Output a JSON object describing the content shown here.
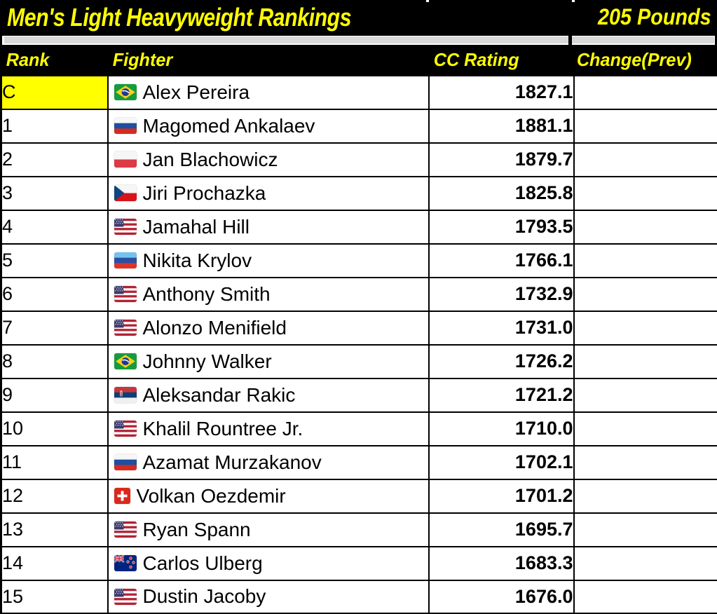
{
  "titlebar": {
    "title": "Men's Light Heavyweight Rankings",
    "weight_class": "205 Pounds"
  },
  "header": {
    "rank": "Rank",
    "fighter": "Fighter",
    "rating": "CC Rating",
    "change": "Change(Prev)"
  },
  "rows": [
    {
      "rank": "C",
      "highlight": true,
      "flag": "brazil",
      "fighter": "Alex Pereira",
      "rating": "1827.1",
      "change": ""
    },
    {
      "rank": "1",
      "highlight": false,
      "flag": "russia",
      "fighter": "Magomed Ankalaev",
      "rating": "1881.1",
      "change": ""
    },
    {
      "rank": "2",
      "highlight": false,
      "flag": "poland",
      "fighter": "Jan Blachowicz",
      "rating": "1879.7",
      "change": ""
    },
    {
      "rank": "3",
      "highlight": false,
      "flag": "czechia",
      "fighter": "Jiri Prochazka",
      "rating": "1825.8",
      "change": ""
    },
    {
      "rank": "4",
      "highlight": false,
      "flag": "usa",
      "fighter": "Jamahal Hill",
      "rating": "1793.5",
      "change": ""
    },
    {
      "rank": "5",
      "highlight": false,
      "flag": "luhansk",
      "fighter": "Nikita Krylov",
      "rating": "1766.1",
      "change": ""
    },
    {
      "rank": "6",
      "highlight": false,
      "flag": "usa",
      "fighter": "Anthony Smith",
      "rating": "1732.9",
      "change": ""
    },
    {
      "rank": "7",
      "highlight": false,
      "flag": "usa",
      "fighter": "Alonzo Menifield",
      "rating": "1731.0",
      "change": ""
    },
    {
      "rank": "8",
      "highlight": false,
      "flag": "brazil",
      "fighter": "Johnny Walker",
      "rating": "1726.2",
      "change": ""
    },
    {
      "rank": "9",
      "highlight": false,
      "flag": "serbia",
      "fighter": "Aleksandar Rakic",
      "rating": "1721.2",
      "change": ""
    },
    {
      "rank": "10",
      "highlight": false,
      "flag": "usa",
      "fighter": "Khalil Rountree Jr.",
      "rating": "1710.0",
      "change": ""
    },
    {
      "rank": "11",
      "highlight": false,
      "flag": "russia",
      "fighter": "Azamat Murzakanov",
      "rating": "1702.1",
      "change": ""
    },
    {
      "rank": "12",
      "highlight": false,
      "flag": "switzerland",
      "fighter": "Volkan Oezdemir",
      "rating": "1701.2",
      "change": ""
    },
    {
      "rank": "13",
      "highlight": false,
      "flag": "usa",
      "fighter": "Ryan Spann",
      "rating": "1695.7",
      "change": ""
    },
    {
      "rank": "14",
      "highlight": false,
      "flag": "newzealand",
      "fighter": "Carlos Ulberg",
      "rating": "1683.3",
      "change": ""
    },
    {
      "rank": "15",
      "highlight": false,
      "flag": "usa",
      "fighter": "Dustin Jacoby",
      "rating": "1676.0",
      "change": ""
    }
  ],
  "flags": {
    "brazil": {
      "type": "brazil",
      "colors": [
        "#169b3e",
        "#fcd116",
        "#1d3a8f",
        "#ffffff"
      ]
    },
    "russia": {
      "type": "stripes",
      "colors": [
        "#f6f6f6",
        "#1c4fa1",
        "#d52b1e"
      ]
    },
    "poland": {
      "type": "stripes",
      "colors": [
        "#f6f6f6",
        "#dc3a45"
      ]
    },
    "czechia": {
      "type": "czechia",
      "colors": [
        "#f6f6f6",
        "#d7141a",
        "#11457e"
      ]
    },
    "usa": {
      "type": "usa",
      "colors": [
        "#b22234",
        "#ffffff",
        "#3c3b6e"
      ]
    },
    "luhansk": {
      "type": "stripes",
      "colors": [
        "#74c2ef",
        "#2a4fa0",
        "#e03228"
      ]
    },
    "serbia": {
      "type": "serbia",
      "colors": [
        "#c6363c",
        "#0c4076",
        "#f0f0f0",
        "#e8c06e"
      ]
    },
    "switzerland": {
      "type": "switzerland",
      "colors": [
        "#da291c",
        "#ffffff"
      ]
    },
    "newzealand": {
      "type": "newzealand",
      "colors": [
        "#00247d",
        "#cc142b",
        "#ffffff"
      ]
    }
  },
  "colors": {
    "background": "#000000",
    "accent_text": "#ffff00",
    "row_background": "#ffffff",
    "grid_lines": "#000000",
    "spacer_band": "#d9d9d9",
    "champion_highlight": "#ffff00",
    "body_text": "#000000"
  },
  "chart_data": {
    "type": "table",
    "title": "Men's Light Heavyweight Rankings",
    "subtitle": "205 Pounds",
    "columns": [
      "Rank",
      "Fighter",
      "CC Rating",
      "Change(Prev)"
    ],
    "rows": [
      [
        "C",
        "Alex Pereira",
        1827.1,
        ""
      ],
      [
        "1",
        "Magomed Ankalaev",
        1881.1,
        ""
      ],
      [
        "2",
        "Jan Blachowicz",
        1879.7,
        ""
      ],
      [
        "3",
        "Jiri Prochazka",
        1825.8,
        ""
      ],
      [
        "4",
        "Jamahal Hill",
        1793.5,
        ""
      ],
      [
        "5",
        "Nikita Krylov",
        1766.1,
        ""
      ],
      [
        "6",
        "Anthony Smith",
        1732.9,
        ""
      ],
      [
        "7",
        "Alonzo Menifield",
        1731.0,
        ""
      ],
      [
        "8",
        "Johnny Walker",
        1726.2,
        ""
      ],
      [
        "9",
        "Aleksandar Rakic",
        1721.2,
        ""
      ],
      [
        "10",
        "Khalil Rountree Jr.",
        1710.0,
        ""
      ],
      [
        "11",
        "Azamat Murzakanov",
        1702.1,
        ""
      ],
      [
        "12",
        "Volkan Oezdemir",
        1701.2,
        ""
      ],
      [
        "13",
        "Ryan Spann",
        1695.7,
        ""
      ],
      [
        "14",
        "Carlos Ulberg",
        1683.3,
        ""
      ],
      [
        "15",
        "Dustin Jacoby",
        1676.0,
        ""
      ]
    ]
  }
}
